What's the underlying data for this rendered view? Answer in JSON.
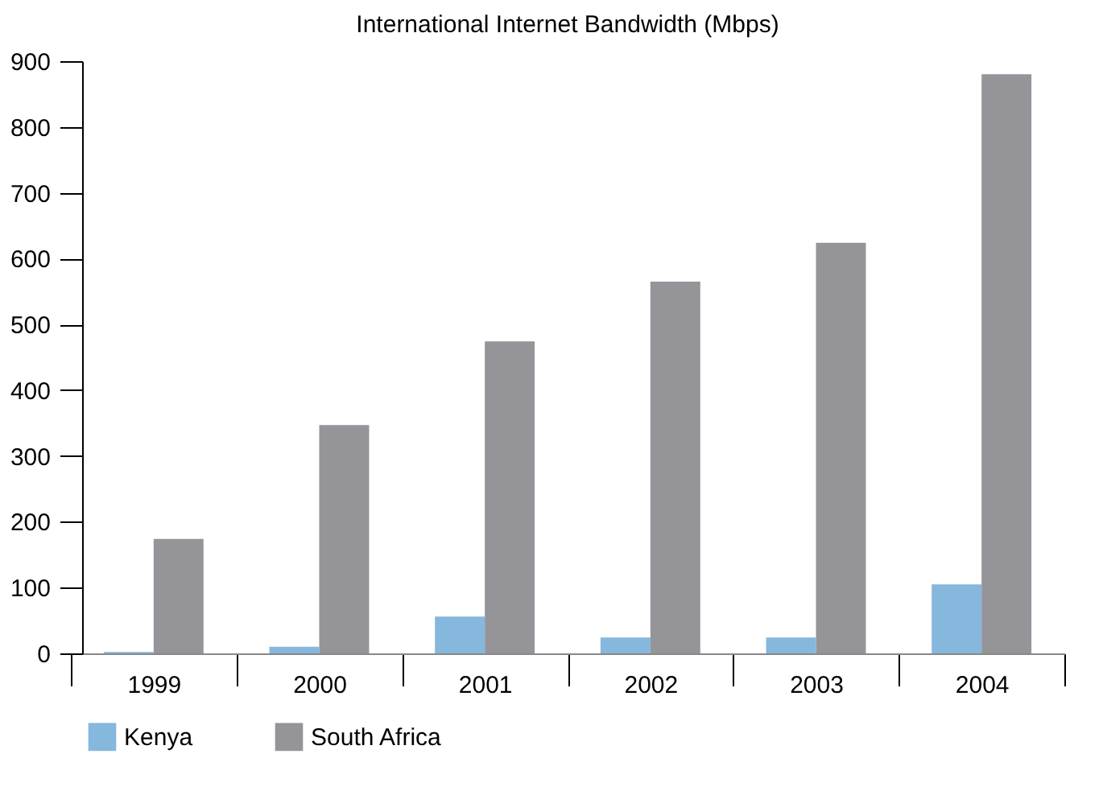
{
  "chart_data": {
    "type": "bar",
    "title": "International Internet Bandwidth (Mbps)",
    "categories": [
      "1999",
      "2000",
      "2001",
      "2002",
      "2003",
      "2004"
    ],
    "series": [
      {
        "name": "Kenya",
        "color": "#86b7dd",
        "values": [
          2,
          10,
          56,
          24,
          24,
          105
        ]
      },
      {
        "name": "South Africa",
        "color": "#959599",
        "values": [
          174,
          347,
          474,
          565,
          624,
          880
        ]
      }
    ],
    "ylim": [
      0,
      900
    ],
    "yticks": [
      0,
      100,
      200,
      300,
      400,
      500,
      600,
      700,
      800,
      900
    ],
    "grid": false,
    "legend": "bottom left"
  }
}
